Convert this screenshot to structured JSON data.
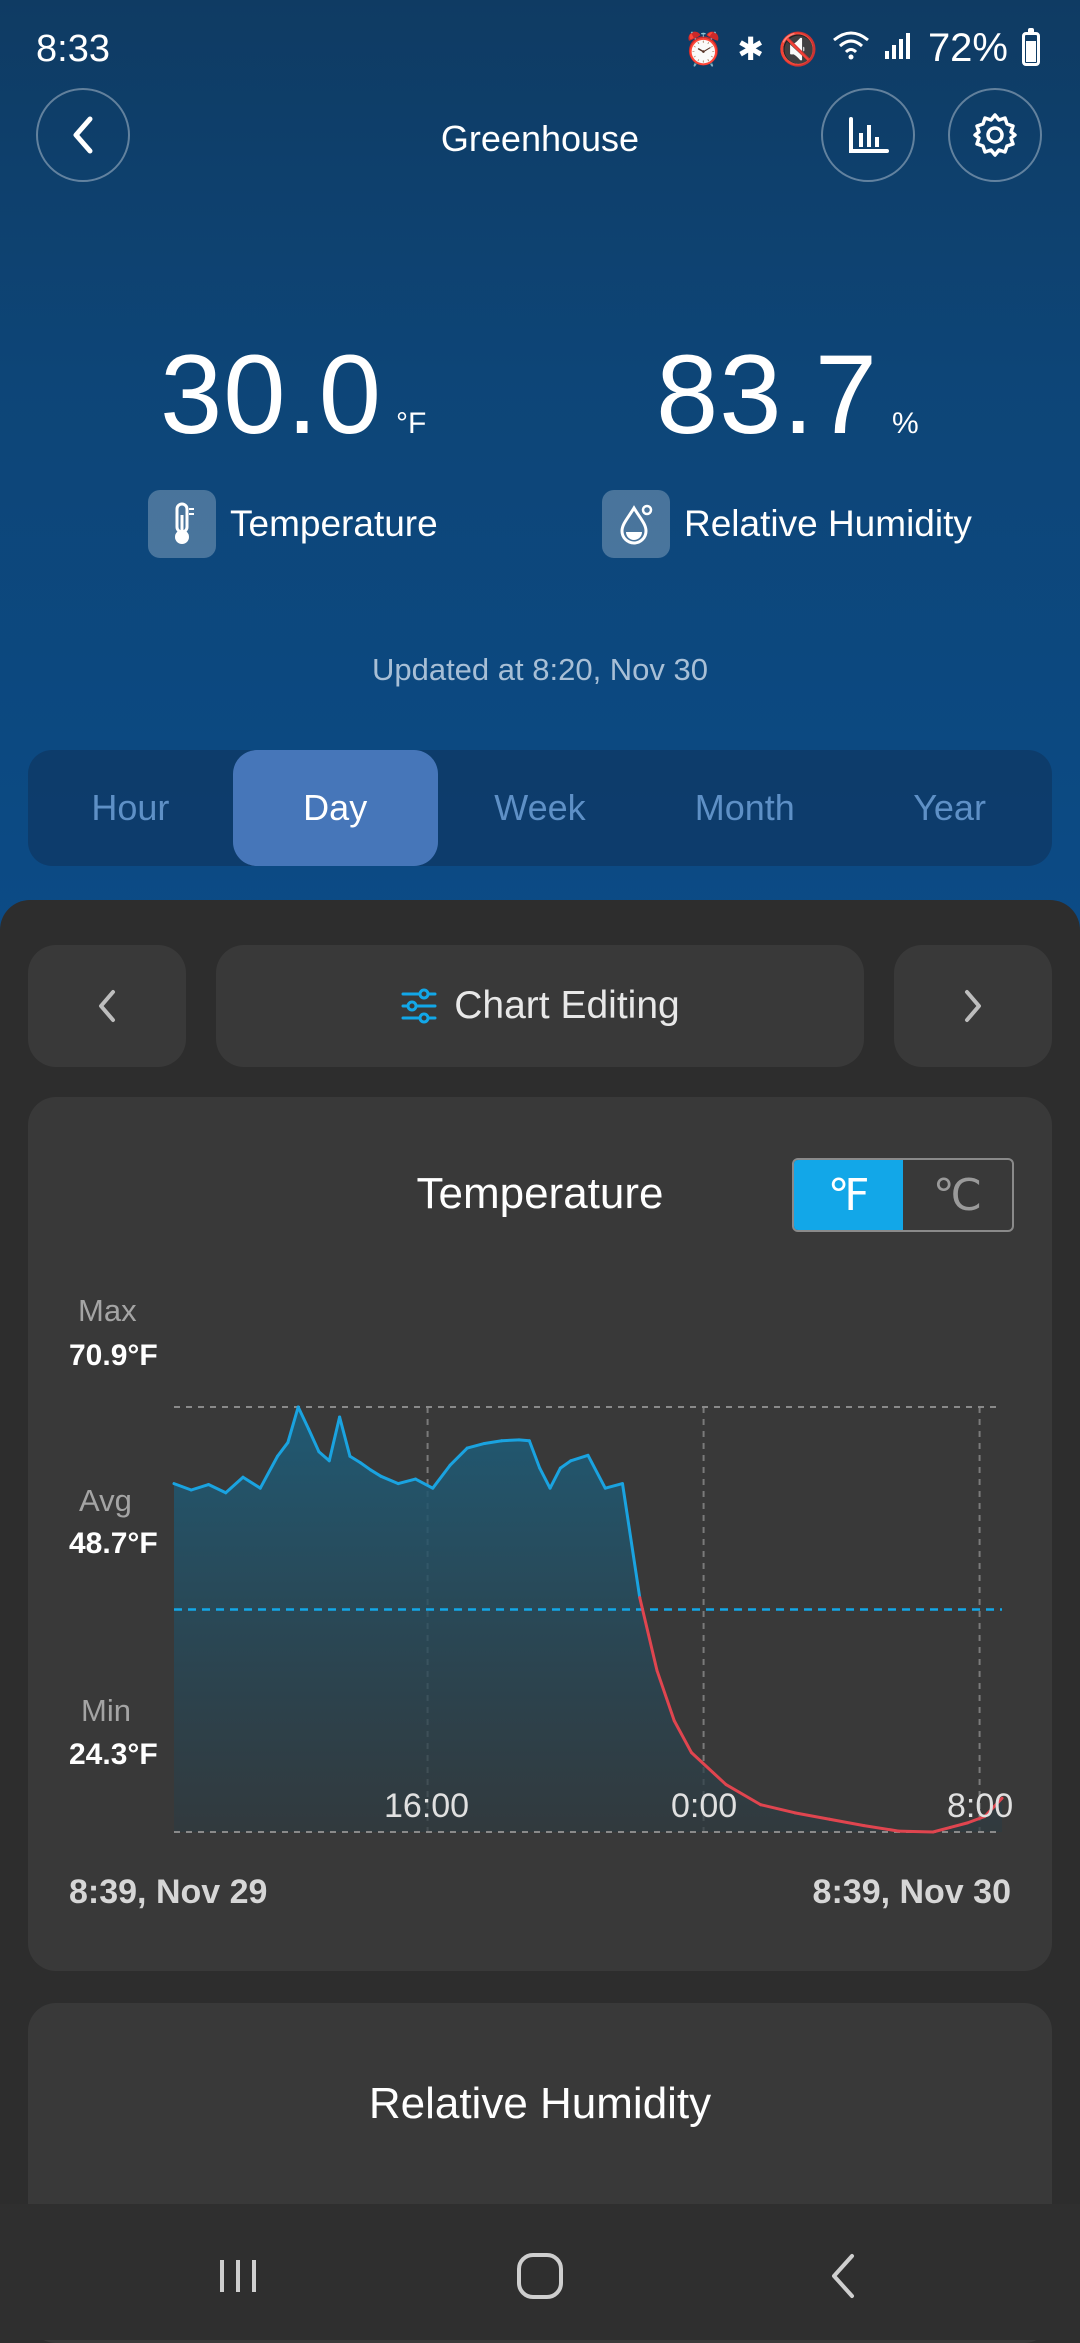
{
  "status_bar": {
    "time": "8:33",
    "battery": "72%",
    "battery_level": 0.72
  },
  "header": {
    "title": "Greenhouse"
  },
  "readings": {
    "temperature": {
      "value": "30.0",
      "unit": "°F",
      "label": "Temperature"
    },
    "humidity": {
      "value": "83.7",
      "unit": "%",
      "label": "Relative Humidity"
    }
  },
  "updated": "Updated at 8:20, Nov 30",
  "period_tabs": {
    "hour": "Hour",
    "day": "Day",
    "week": "Week",
    "month": "Month",
    "year": "Year",
    "selected": "Day"
  },
  "chart_nav": {
    "edit_label": "Chart Editing"
  },
  "temperature_card": {
    "title": "Temperature",
    "unit_f": "℉",
    "unit_c": "℃",
    "selected_unit": "℉",
    "max_label": "Max",
    "max_value": "70.9°F",
    "avg_label": "Avg",
    "avg_value": "48.7°F",
    "min_label": "Min",
    "min_value": "24.3°F",
    "x_ticks": [
      "16:00",
      "0:00",
      "8:00"
    ],
    "range_start": "8:39, Nov 29",
    "range_end": "8:39, Nov 30"
  },
  "humidity_card": {
    "title": "Relative Humidity"
  },
  "colors": {
    "header_gradient_top": "#0f3b63",
    "header_gradient_bottom": "#0c4b86",
    "active_tab": "#4676b9",
    "accent": "#12a7e8",
    "line_normal": "#1aa3e0",
    "line_low": "#e0454f",
    "card": "#393939"
  },
  "chart_data": {
    "type": "area",
    "title": "Temperature",
    "xlabel": "",
    "ylabel": "",
    "x_range": [
      "8:39, Nov 29",
      "8:39, Nov 30"
    ],
    "x_ticks": [
      "16:00",
      "0:00",
      "8:00"
    ],
    "ylim": [
      24.3,
      70.9
    ],
    "reference_lines": {
      "max": 70.9,
      "avg": 48.7,
      "min": 24.3
    },
    "threshold_color_change_below": 48.7,
    "series": [
      {
        "x_hours_since_start": [
          0,
          0.5,
          1,
          1.5,
          2,
          2.5,
          3,
          3.3,
          3.6,
          3.9,
          4.2,
          4.5,
          4.8,
          5.1,
          5.4,
          5.7,
          6,
          6.5,
          7,
          7.5,
          8,
          8.5,
          9,
          9.5,
          10,
          10.3,
          10.6,
          10.9,
          11.2,
          11.5,
          12,
          12.5,
          13,
          13.5,
          14,
          14.5,
          15,
          16,
          17,
          18,
          19,
          20,
          21,
          22,
          22.5,
          23,
          23.5,
          24
        ],
        "values": [
          62.5,
          61.8,
          62.4,
          61.5,
          63.2,
          62.0,
          65.5,
          67.0,
          70.9,
          68.5,
          66.0,
          65.0,
          69.8,
          65.5,
          64.8,
          64.0,
          63.3,
          62.5,
          63.0,
          62.0,
          64.5,
          66.4,
          66.9,
          67.2,
          67.3,
          67.2,
          64.2,
          62.0,
          64.2,
          65.0,
          65.6,
          62.0,
          62.5,
          50.0,
          42.0,
          36.5,
          33.0,
          29.5,
          27.3,
          26.4,
          25.7,
          25.0,
          24.4,
          24.3,
          24.8,
          25.3,
          26.0,
          28.0
        ]
      }
    ]
  }
}
